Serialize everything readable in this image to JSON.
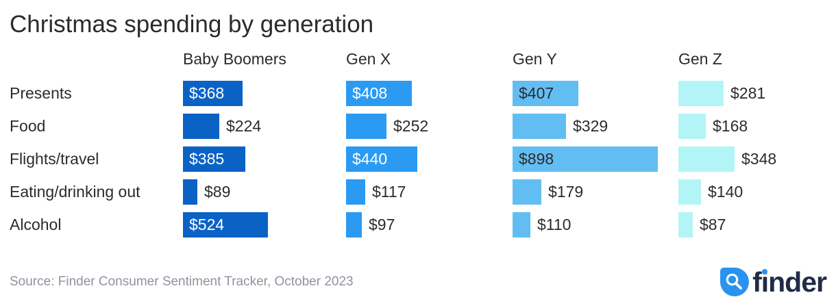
{
  "title": "Christmas spending by generation",
  "source": "Source: Finder Consumer Sentiment Tracker, October 2023",
  "logo": {
    "text": "finder",
    "icon": "magnifier-droplet-icon",
    "icon_color": "#2a93ee",
    "text_color": "#202c47"
  },
  "colors": {
    "background": "#ffffff",
    "text": "#2b2b2b",
    "source_text": "#8e939d"
  },
  "chart_data": {
    "type": "bar",
    "orientation": "horizontal",
    "title": "Christmas spending by generation",
    "value_prefix": "$",
    "grid": false,
    "categories": [
      "Presents",
      "Food",
      "Flights/travel",
      "Eating/drinking out",
      "Alcohol"
    ],
    "series": [
      {
        "name": "Baby Boomers",
        "color": "#0b62c5",
        "label_color_inside": "#ffffff",
        "values": [
          368,
          224,
          385,
          89,
          524
        ]
      },
      {
        "name": "Gen X",
        "color": "#2b9af3",
        "label_color_inside": "#ffffff",
        "values": [
          408,
          252,
          440,
          117,
          97
        ]
      },
      {
        "name": "Gen Y",
        "color": "#62bef2",
        "label_color_inside": "#2b2b2b",
        "values": [
          407,
          329,
          898,
          179,
          110
        ]
      },
      {
        "name": "Gen Z",
        "color": "#b3f5f7",
        "label_color_inside": "#2b2b2b",
        "values": [
          281,
          168,
          348,
          140,
          87
        ]
      }
    ]
  }
}
